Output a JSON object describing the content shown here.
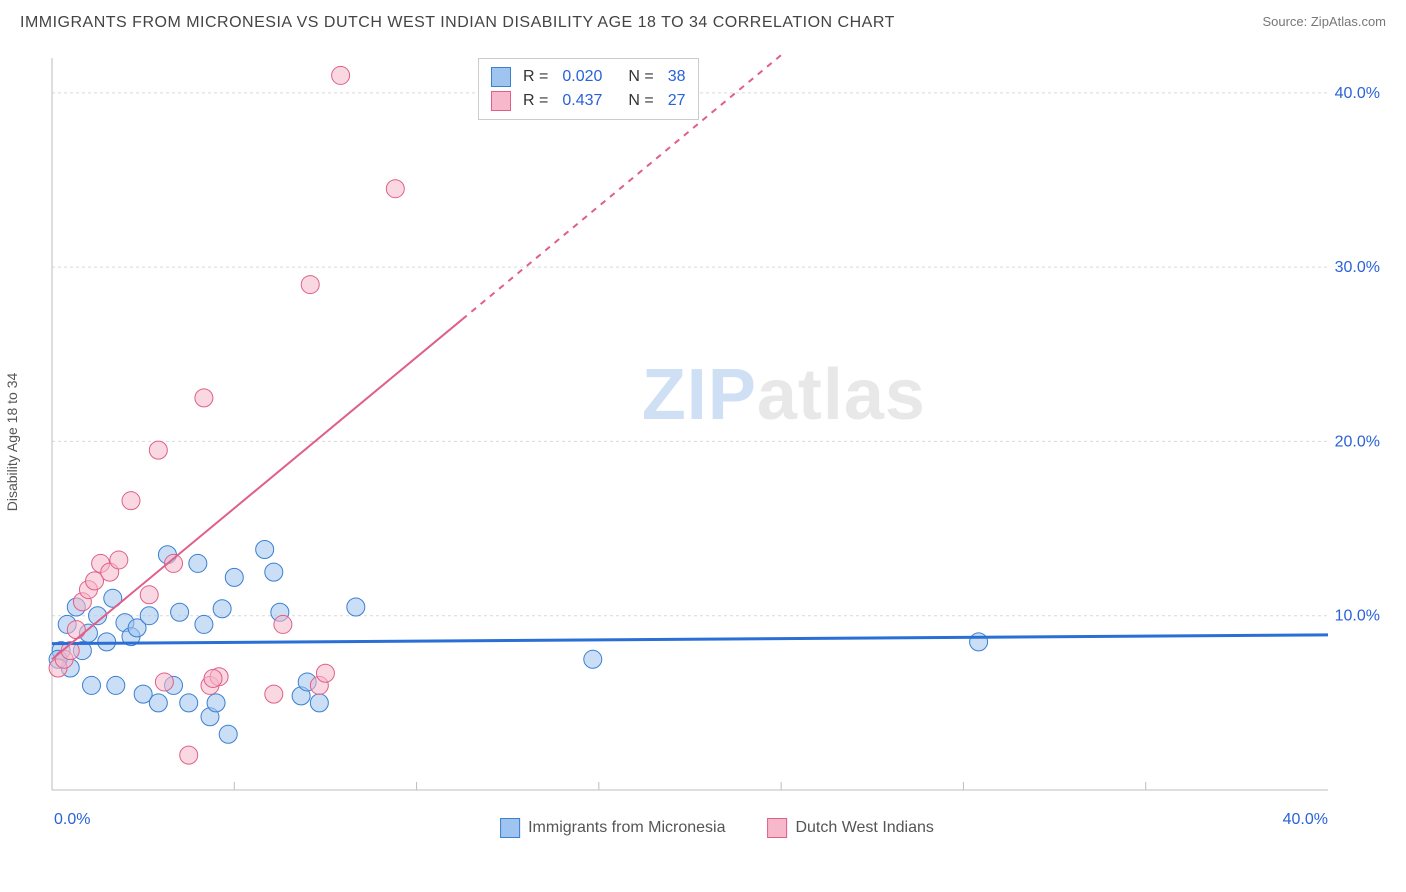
{
  "header": {
    "title": "IMMIGRANTS FROM MICRONESIA VS DUTCH WEST INDIAN DISABILITY AGE 18 TO 34 CORRELATION CHART",
    "source": "Source: ZipAtlas.com"
  },
  "chart": {
    "type": "scatter",
    "y_axis_label": "Disability Age 18 to 34",
    "watermark": {
      "part1": "ZIP",
      "part2": "atlas"
    },
    "background": "#ffffff",
    "grid_color": "#d9d9d9",
    "axis_color": "#bdbdbd",
    "tick_color": "#bdbdbd",
    "tick_label_color": "#2962d9",
    "tick_fontsize": 16,
    "xlim": [
      0,
      42
    ],
    "ylim": [
      0,
      42
    ],
    "y_ticks": [
      10,
      20,
      30,
      40
    ],
    "y_tick_labels": [
      "10.0%",
      "20.0%",
      "30.0%",
      "40.0%"
    ],
    "x_ticks": [
      0,
      40
    ],
    "x_tick_labels": [
      "0.0%",
      "40.0%"
    ],
    "x_minor_ticks": [
      6,
      12,
      18,
      24,
      30,
      36
    ],
    "marker_radius": 9,
    "marker_stroke_width": 1,
    "fill_opacity": 0.55,
    "series": [
      {
        "name": "Immigrants from Micronesia",
        "color_fill": "#9ec4ef",
        "color_stroke": "#3b7fd1",
        "R": "0.020",
        "N": "38",
        "trend": {
          "x1": 0,
          "y1": 8.4,
          "x2": 42,
          "y2": 8.9,
          "color": "#2a6fd6",
          "width": 3
        },
        "points": [
          [
            0.3,
            8.0
          ],
          [
            0.5,
            9.5
          ],
          [
            0.6,
            7.0
          ],
          [
            0.8,
            10.5
          ],
          [
            1.0,
            8.0
          ],
          [
            1.2,
            9.0
          ],
          [
            1.3,
            6.0
          ],
          [
            1.5,
            10.0
          ],
          [
            1.8,
            8.5
          ],
          [
            2.0,
            11.0
          ],
          [
            2.1,
            6.0
          ],
          [
            2.4,
            9.6
          ],
          [
            2.6,
            8.8
          ],
          [
            2.8,
            9.3
          ],
          [
            3.0,
            5.5
          ],
          [
            3.2,
            10.0
          ],
          [
            3.5,
            5.0
          ],
          [
            3.8,
            13.5
          ],
          [
            4.0,
            6.0
          ],
          [
            4.2,
            10.2
          ],
          [
            4.5,
            5.0
          ],
          [
            4.8,
            13.0
          ],
          [
            5.0,
            9.5
          ],
          [
            5.2,
            4.2
          ],
          [
            5.4,
            5.0
          ],
          [
            5.6,
            10.4
          ],
          [
            5.8,
            3.2
          ],
          [
            6.0,
            12.2
          ],
          [
            7.0,
            13.8
          ],
          [
            7.3,
            12.5
          ],
          [
            7.5,
            10.2
          ],
          [
            8.2,
            5.4
          ],
          [
            8.4,
            6.2
          ],
          [
            8.8,
            5.0
          ],
          [
            10.0,
            10.5
          ],
          [
            17.8,
            7.5
          ],
          [
            30.5,
            8.5
          ],
          [
            0.2,
            7.5
          ]
        ]
      },
      {
        "name": "Dutch West Indians",
        "color_fill": "#f6b8ca",
        "color_stroke": "#e05f8a",
        "R": "0.437",
        "N": "27",
        "trend": {
          "x1": 0,
          "y1": 7.5,
          "x2": 13.5,
          "y2": 27.0,
          "x3": 27.0,
          "y3": 46.5,
          "color": "#e05f8a",
          "width": 2,
          "dash_after_x": 13.5
        },
        "points": [
          [
            0.2,
            7.0
          ],
          [
            0.4,
            7.5
          ],
          [
            0.6,
            8.0
          ],
          [
            0.8,
            9.2
          ],
          [
            1.0,
            10.8
          ],
          [
            1.2,
            11.5
          ],
          [
            1.4,
            12.0
          ],
          [
            1.6,
            13.0
          ],
          [
            1.9,
            12.5
          ],
          [
            2.2,
            13.2
          ],
          [
            2.6,
            16.6
          ],
          [
            3.2,
            11.2
          ],
          [
            3.5,
            19.5
          ],
          [
            3.7,
            6.2
          ],
          [
            4.0,
            13.0
          ],
          [
            4.5,
            2.0
          ],
          [
            5.0,
            22.5
          ],
          [
            5.2,
            6.0
          ],
          [
            5.5,
            6.5
          ],
          [
            7.3,
            5.5
          ],
          [
            7.6,
            9.5
          ],
          [
            8.5,
            29.0
          ],
          [
            8.8,
            6.0
          ],
          [
            9.0,
            6.7
          ],
          [
            9.5,
            41.0
          ],
          [
            11.3,
            34.5
          ],
          [
            5.3,
            6.4
          ]
        ]
      }
    ]
  }
}
